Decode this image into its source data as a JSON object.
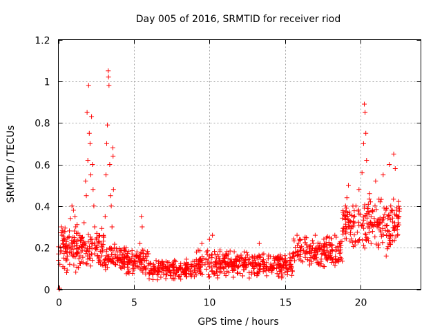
{
  "chart_data": {
    "type": "scatter",
    "title": "Day 005 of 2016, SRMTID for receiver riod",
    "xlabel": "GPS time / hours",
    "ylabel": "SRMTID / TECUs",
    "xlim": [
      0,
      24
    ],
    "ylim": [
      0,
      1.2
    ],
    "xticks": [
      0,
      5,
      10,
      15,
      20
    ],
    "xtick_labels": [
      "0",
      "5",
      "10",
      "15",
      "20"
    ],
    "yticks": [
      0,
      0.2,
      0.4,
      0.6,
      0.8,
      1,
      1.2
    ],
    "ytick_labels": [
      "0",
      "0.2",
      "0.4",
      "0.6",
      "0.8",
      "1",
      "1.2"
    ],
    "grid": true,
    "marker": "+",
    "color": "#ff0000",
    "points": [
      [
        0.05,
        0.0
      ],
      [
        0.08,
        0.005
      ],
      [
        0.1,
        0.12
      ],
      [
        0.15,
        0.18
      ],
      [
        0.2,
        0.3
      ],
      [
        0.25,
        0.26
      ],
      [
        0.3,
        0.22
      ],
      [
        0.35,
        0.15
      ],
      [
        0.4,
        0.1
      ],
      [
        0.45,
        0.2
      ],
      [
        0.5,
        0.14
      ],
      [
        0.55,
        0.08
      ],
      [
        0.6,
        0.16
      ],
      [
        0.7,
        0.25
      ],
      [
        0.75,
        0.12
      ],
      [
        0.8,
        0.34
      ],
      [
        0.85,
        0.18
      ],
      [
        0.9,
        0.4
      ],
      [
        0.95,
        0.22
      ],
      [
        1.0,
        0.38
      ],
      [
        1.05,
        0.28
      ],
      [
        1.1,
        0.35
      ],
      [
        1.15,
        0.3
      ],
      [
        1.2,
        0.22
      ],
      [
        1.3,
        0.27
      ],
      [
        1.4,
        0.2
      ],
      [
        1.5,
        0.18
      ],
      [
        1.6,
        0.25
      ],
      [
        1.7,
        0.32
      ],
      [
        1.75,
        0.22
      ],
      [
        1.8,
        0.52
      ],
      [
        1.85,
        0.45
      ],
      [
        1.9,
        0.85
      ],
      [
        1.95,
        0.62
      ],
      [
        2.0,
        0.98
      ],
      [
        2.05,
        0.75
      ],
      [
        2.1,
        0.7
      ],
      [
        2.15,
        0.55
      ],
      [
        2.2,
        0.83
      ],
      [
        2.25,
        0.6
      ],
      [
        2.3,
        0.48
      ],
      [
        2.35,
        0.4
      ],
      [
        2.4,
        0.3
      ],
      [
        2.5,
        0.2
      ],
      [
        2.6,
        0.16
      ],
      [
        2.7,
        0.14
      ],
      [
        2.8,
        0.12
      ],
      [
        2.9,
        0.18
      ],
      [
        3.0,
        0.25
      ],
      [
        3.1,
        0.35
      ],
      [
        3.15,
        0.55
      ],
      [
        3.2,
        0.7
      ],
      [
        3.25,
        0.79
      ],
      [
        3.3,
        1.05
      ],
      [
        3.32,
        1.02
      ],
      [
        3.35,
        0.98
      ],
      [
        3.4,
        0.6
      ],
      [
        3.45,
        0.45
      ],
      [
        3.5,
        0.4
      ],
      [
        3.55,
        0.3
      ],
      [
        3.6,
        0.68
      ],
      [
        3.62,
        0.64
      ],
      [
        3.65,
        0.48
      ],
      [
        3.7,
        0.2
      ],
      [
        3.75,
        0.15
      ],
      [
        3.8,
        0.12
      ],
      [
        3.9,
        0.18
      ],
      [
        4.0,
        0.14
      ],
      [
        4.2,
        0.1
      ],
      [
        4.4,
        0.12
      ],
      [
        4.6,
        0.08
      ],
      [
        4.8,
        0.13
      ],
      [
        5.0,
        0.1
      ],
      [
        5.2,
        0.18
      ],
      [
        5.4,
        0.22
      ],
      [
        5.5,
        0.35
      ],
      [
        5.55,
        0.3
      ],
      [
        5.6,
        0.15
      ],
      [
        5.8,
        0.1
      ],
      [
        6.0,
        0.08
      ],
      [
        6.3,
        0.12
      ],
      [
        6.6,
        0.07
      ],
      [
        7.0,
        0.1
      ],
      [
        7.3,
        0.09
      ],
      [
        7.6,
        0.12
      ],
      [
        8.0,
        0.1
      ],
      [
        8.3,
        0.08
      ],
      [
        8.6,
        0.12
      ],
      [
        9.0,
        0.06
      ],
      [
        9.3,
        0.14
      ],
      [
        9.5,
        0.22
      ],
      [
        9.8,
        0.18
      ],
      [
        10.0,
        0.24
      ],
      [
        10.2,
        0.26
      ],
      [
        10.4,
        0.12
      ],
      [
        10.7,
        0.1
      ],
      [
        11.0,
        0.16
      ],
      [
        11.3,
        0.12
      ],
      [
        11.6,
        0.1
      ],
      [
        12.0,
        0.14
      ],
      [
        12.3,
        0.18
      ],
      [
        12.6,
        0.12
      ],
      [
        13.0,
        0.16
      ],
      [
        13.3,
        0.22
      ],
      [
        13.6,
        0.12
      ],
      [
        14.0,
        0.1
      ],
      [
        14.3,
        0.14
      ],
      [
        14.6,
        0.12
      ],
      [
        15.0,
        0.08
      ],
      [
        15.3,
        0.12
      ],
      [
        15.6,
        0.16
      ],
      [
        15.8,
        0.26
      ],
      [
        16.0,
        0.2
      ],
      [
        16.3,
        0.24
      ],
      [
        16.6,
        0.18
      ],
      [
        17.0,
        0.26
      ],
      [
        17.3,
        0.2
      ],
      [
        17.6,
        0.22
      ],
      [
        18.0,
        0.18
      ],
      [
        18.3,
        0.26
      ],
      [
        18.6,
        0.22
      ],
      [
        18.8,
        0.28
      ],
      [
        19.0,
        0.34
      ],
      [
        19.1,
        0.44
      ],
      [
        19.2,
        0.5
      ],
      [
        19.3,
        0.36
      ],
      [
        19.5,
        0.3
      ],
      [
        19.7,
        0.4
      ],
      [
        19.9,
        0.48
      ],
      [
        20.0,
        0.36
      ],
      [
        20.1,
        0.56
      ],
      [
        20.2,
        0.7
      ],
      [
        20.25,
        0.89
      ],
      [
        20.3,
        0.85
      ],
      [
        20.35,
        0.75
      ],
      [
        20.4,
        0.62
      ],
      [
        20.5,
        0.3
      ],
      [
        20.6,
        0.46
      ],
      [
        20.7,
        0.22
      ],
      [
        20.8,
        0.38
      ],
      [
        21.0,
        0.52
      ],
      [
        21.1,
        0.3
      ],
      [
        21.2,
        0.2
      ],
      [
        21.3,
        0.42
      ],
      [
        21.5,
        0.55
      ],
      [
        21.6,
        0.36
      ],
      [
        21.7,
        0.16
      ],
      [
        21.8,
        0.28
      ],
      [
        21.9,
        0.6
      ],
      [
        22.0,
        0.4
      ],
      [
        22.1,
        0.26
      ],
      [
        22.2,
        0.65
      ],
      [
        22.3,
        0.58
      ],
      [
        22.35,
        0.3
      ],
      [
        22.4,
        0.38
      ],
      [
        22.45,
        0.26
      ],
      [
        22.5,
        0.32
      ],
      [
        22.55,
        0.35
      ]
    ],
    "dense_bands": [
      {
        "x_start": 0.0,
        "x_end": 1.5,
        "y_min": 0.06,
        "y_max": 0.34
      },
      {
        "x_start": 1.5,
        "x_end": 3.0,
        "y_min": 0.1,
        "y_max": 0.3
      },
      {
        "x_start": 3.0,
        "x_end": 4.5,
        "y_min": 0.08,
        "y_max": 0.22
      },
      {
        "x_start": 4.5,
        "x_end": 6.0,
        "y_min": 0.07,
        "y_max": 0.2
      },
      {
        "x_start": 6.0,
        "x_end": 9.0,
        "y_min": 0.04,
        "y_max": 0.15
      },
      {
        "x_start": 9.0,
        "x_end": 12.0,
        "y_min": 0.05,
        "y_max": 0.2
      },
      {
        "x_start": 12.0,
        "x_end": 15.5,
        "y_min": 0.05,
        "y_max": 0.18
      },
      {
        "x_start": 15.5,
        "x_end": 18.8,
        "y_min": 0.1,
        "y_max": 0.26
      },
      {
        "x_start": 18.8,
        "x_end": 20.0,
        "y_min": 0.18,
        "y_max": 0.42
      },
      {
        "x_start": 20.0,
        "x_end": 22.6,
        "y_min": 0.18,
        "y_max": 0.45
      }
    ]
  }
}
